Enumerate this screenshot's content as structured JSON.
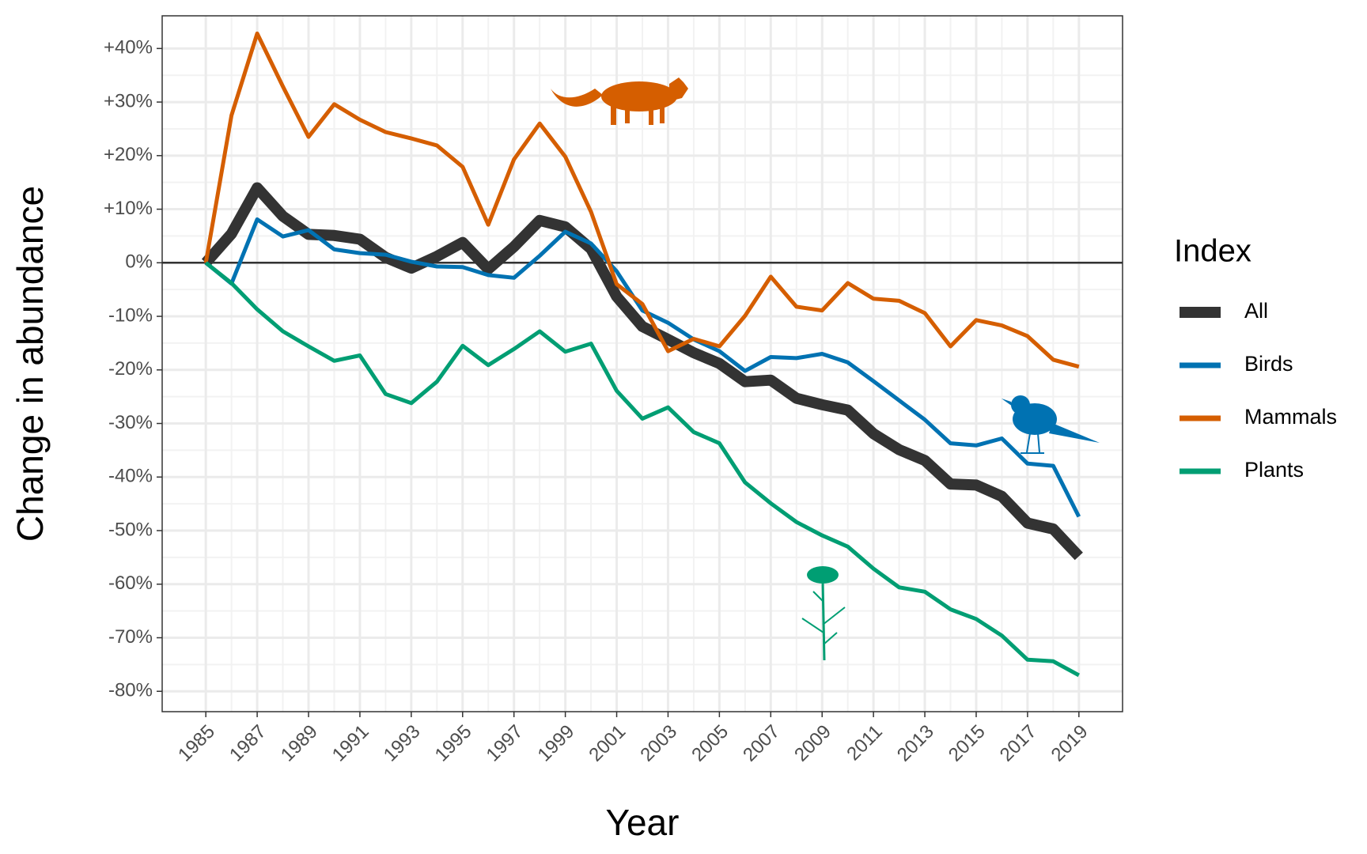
{
  "chart_data": {
    "type": "line",
    "x_label": "Year",
    "y_label": "Change in abundance",
    "legend_title": "Index",
    "legend": "right",
    "grid": true,
    "minor_grid": true,
    "hline": 0,
    "x": [
      1985,
      1986,
      1987,
      1988,
      1989,
      1990,
      1991,
      1992,
      1993,
      1994,
      1995,
      1996,
      1997,
      1998,
      1999,
      2000,
      2001,
      2002,
      2003,
      2004,
      2005,
      2006,
      2007,
      2008,
      2009,
      2010,
      2011,
      2012,
      2013,
      2014,
      2015,
      2016,
      2017,
      2018,
      2019
    ],
    "xlim": [
      1983.3,
      2020.7
    ],
    "xticks": [
      1985,
      1987,
      1989,
      1991,
      1993,
      1995,
      1997,
      1999,
      2001,
      2003,
      2005,
      2007,
      2009,
      2011,
      2013,
      2015,
      2017,
      2019
    ],
    "ylim": [
      -83.8,
      46.1
    ],
    "yticks": [
      {
        "value": 40,
        "label": "+40%"
      },
      {
        "value": 30,
        "label": "+30%"
      },
      {
        "value": 20,
        "label": "+20%"
      },
      {
        "value": 10,
        "label": "+10%"
      },
      {
        "value": 0,
        "label": "0%"
      },
      {
        "value": -10,
        "label": "-10%"
      },
      {
        "value": -20,
        "label": "-20%"
      },
      {
        "value": -30,
        "label": "-30%"
      },
      {
        "value": -40,
        "label": "-40%"
      },
      {
        "value": -50,
        "label": "-50%"
      },
      {
        "value": -60,
        "label": "-60%"
      },
      {
        "value": -70,
        "label": "-70%"
      },
      {
        "value": -80,
        "label": "-80%"
      }
    ],
    "series": [
      {
        "name": "All",
        "color": "#333333",
        "width": 14,
        "values": [
          0,
          5.4,
          14,
          8.7,
          5.3,
          5.1,
          4.4,
          1,
          -1,
          1.2,
          3.8,
          -1.2,
          3,
          7.9,
          6.7,
          2.6,
          -6.3,
          -11.9,
          -14.3,
          -16.8,
          -18.8,
          -22.2,
          -21.9,
          -25.3,
          -26.5,
          -27.5,
          -31.9,
          -34.9,
          -36.9,
          -41.3,
          -41.5,
          -43.6,
          -48.6,
          -49.7,
          -54.8
        ]
      },
      {
        "name": "Birds",
        "color": "#0072B2",
        "width": 5,
        "values": [
          0,
          -3.9,
          8.1,
          4.9,
          6.1,
          2.5,
          1.8,
          1.5,
          0.2,
          -0.7,
          -0.8,
          -2.3,
          -2.8,
          1.3,
          5.8,
          3.6,
          -1.6,
          -8.9,
          -11.2,
          -14.3,
          -16.5,
          -20.2,
          -17.6,
          -17.8,
          -17,
          -18.6,
          -22.1,
          -25.7,
          -29.3,
          -33.7,
          -34.1,
          -32.8,
          -37.5,
          -37.9,
          -47.4
        ]
      },
      {
        "name": "Mammals",
        "color": "#D55E00",
        "width": 5,
        "values": [
          0,
          27.5,
          42.8,
          32.9,
          23.5,
          29.6,
          26.7,
          24.4,
          23.2,
          21.9,
          17.9,
          7.1,
          19.3,
          26,
          19.8,
          9.5,
          -4,
          -7.7,
          -16.5,
          -14.2,
          -15.6,
          -9.9,
          -2.6,
          -8.2,
          -8.9,
          -3.8,
          -6.7,
          -7.1,
          -9.4,
          -15.6,
          -10.7,
          -11.7,
          -13.7,
          -18.1,
          -19.4
        ]
      },
      {
        "name": "Plants",
        "color": "#009E73",
        "width": 5,
        "values": [
          0,
          -3.8,
          -8.7,
          -12.8,
          -15.6,
          -18.3,
          -17.3,
          -24.5,
          -26.2,
          -22.2,
          -15.5,
          -19.1,
          -16.1,
          -12.8,
          -16.6,
          -15.1,
          -23.9,
          -29.1,
          -27,
          -31.6,
          -33.7,
          -41,
          -44.9,
          -48.4,
          -50.9,
          -53,
          -57.1,
          -60.6,
          -61.4,
          -64.7,
          -66.5,
          -69.6,
          -74.1,
          -74.4,
          -77
        ]
      }
    ]
  }
}
